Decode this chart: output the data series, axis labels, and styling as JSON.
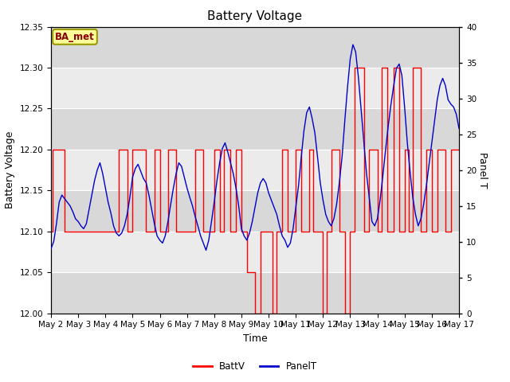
{
  "title": "Battery Voltage",
  "xlabel": "Time",
  "ylabel_left": "Battery Voltage",
  "ylabel_right": "Panel T",
  "annotation": "BA_met",
  "xlim_days": [
    1,
    16
  ],
  "ylim_left": [
    12.0,
    12.35
  ],
  "ylim_right": [
    0,
    40
  ],
  "yticks_left": [
    12.0,
    12.05,
    12.1,
    12.15,
    12.2,
    12.25,
    12.3,
    12.35
  ],
  "yticks_right": [
    0,
    5,
    10,
    15,
    20,
    25,
    30,
    35,
    40
  ],
  "xtick_labels": [
    "May 2",
    "May 3",
    "May 4",
    "May 5",
    "May 6",
    "May 7",
    "May 8",
    "May 9",
    "May 10",
    "May 11",
    "May 12",
    "May 13",
    "May 14",
    "May 15",
    "May 16",
    "May 17"
  ],
  "xtick_positions": [
    1,
    2,
    3,
    4,
    5,
    6,
    7,
    8,
    9,
    10,
    11,
    12,
    13,
    14,
    15,
    16
  ],
  "color_battv": "#FF0000",
  "color_panelt": "#0000CC",
  "bg_outer": "#FFFFFF",
  "bg_inner_light": "#EBEBEB",
  "bg_inner_dark": "#D8D8D8",
  "grid_color": "#FFFFFF",
  "legend_labels": [
    "BattV",
    "PanelT"
  ],
  "title_fontsize": 11,
  "axis_label_fontsize": 9,
  "tick_fontsize": 7.5,
  "battv_x": [
    1.0,
    1.05,
    1.05,
    1.5,
    1.5,
    2.0,
    2.0,
    2.5,
    2.5,
    3.0,
    3.0,
    3.5,
    3.5,
    3.8,
    3.8,
    4.0,
    4.0,
    4.5,
    4.5,
    4.8,
    4.8,
    5.0,
    5.0,
    5.3,
    5.3,
    5.6,
    5.6,
    5.8,
    5.8,
    6.0,
    6.0,
    6.3,
    6.3,
    6.6,
    6.6,
    6.8,
    6.8,
    7.0,
    7.0,
    7.2,
    7.2,
    7.35,
    7.35,
    7.6,
    7.6,
    7.8,
    7.8,
    8.0,
    8.0,
    8.2,
    8.2,
    8.5,
    8.5,
    8.7,
    8.7,
    9.0,
    9.0,
    9.15,
    9.15,
    9.3,
    9.3,
    9.5,
    9.5,
    9.7,
    9.7,
    10.0,
    10.0,
    10.2,
    10.2,
    10.5,
    10.5,
    10.65,
    10.65,
    11.0,
    11.0,
    11.15,
    11.15,
    11.3,
    11.3,
    11.6,
    11.6,
    11.8,
    11.8,
    12.0,
    12.0,
    12.15,
    12.15,
    12.5,
    12.5,
    12.7,
    12.7,
    13.0,
    13.0,
    13.15,
    13.15,
    13.35,
    13.35,
    13.6,
    13.6,
    13.8,
    13.8,
    14.0,
    14.0,
    14.15,
    14.15,
    14.3,
    14.3,
    14.6,
    14.6,
    14.8,
    14.8,
    15.0,
    15.0,
    15.2,
    15.2,
    15.5,
    15.5,
    15.7,
    15.7,
    16.0
  ],
  "battv_y": [
    12.1,
    12.1,
    12.2,
    12.2,
    12.1,
    12.1,
    12.1,
    12.1,
    12.1,
    12.1,
    12.1,
    12.1,
    12.2,
    12.2,
    12.1,
    12.1,
    12.2,
    12.2,
    12.1,
    12.1,
    12.2,
    12.2,
    12.1,
    12.1,
    12.2,
    12.2,
    12.1,
    12.1,
    12.1,
    12.1,
    12.1,
    12.1,
    12.2,
    12.2,
    12.1,
    12.1,
    12.1,
    12.1,
    12.2,
    12.2,
    12.1,
    12.1,
    12.2,
    12.2,
    12.1,
    12.1,
    12.2,
    12.2,
    12.1,
    12.1,
    12.05,
    12.05,
    12.0,
    12.0,
    12.1,
    12.1,
    12.1,
    12.1,
    12.0,
    12.0,
    12.1,
    12.1,
    12.2,
    12.2,
    12.1,
    12.1,
    12.2,
    12.2,
    12.1,
    12.1,
    12.2,
    12.2,
    12.1,
    12.1,
    12.0,
    12.0,
    12.1,
    12.1,
    12.2,
    12.2,
    12.1,
    12.1,
    12.0,
    12.0,
    12.1,
    12.1,
    12.3,
    12.3,
    12.1,
    12.1,
    12.2,
    12.2,
    12.1,
    12.1,
    12.3,
    12.3,
    12.1,
    12.1,
    12.3,
    12.3,
    12.1,
    12.1,
    12.2,
    12.2,
    12.1,
    12.1,
    12.3,
    12.3,
    12.1,
    12.1,
    12.2,
    12.2,
    12.1,
    12.1,
    12.2,
    12.2,
    12.1,
    12.1,
    12.2,
    12.2
  ],
  "panelt_x": [
    1.0,
    1.1,
    1.2,
    1.3,
    1.4,
    1.5,
    1.6,
    1.7,
    1.8,
    1.9,
    2.0,
    2.1,
    2.2,
    2.3,
    2.4,
    2.5,
    2.6,
    2.7,
    2.8,
    2.9,
    3.0,
    3.1,
    3.2,
    3.3,
    3.4,
    3.5,
    3.6,
    3.7,
    3.8,
    3.9,
    4.0,
    4.1,
    4.2,
    4.3,
    4.4,
    4.5,
    4.6,
    4.7,
    4.8,
    4.9,
    5.0,
    5.1,
    5.2,
    5.3,
    5.4,
    5.5,
    5.6,
    5.7,
    5.8,
    5.9,
    6.0,
    6.1,
    6.2,
    6.3,
    6.4,
    6.5,
    6.6,
    6.7,
    6.8,
    6.9,
    7.0,
    7.1,
    7.2,
    7.3,
    7.4,
    7.5,
    7.6,
    7.7,
    7.8,
    7.9,
    8.0,
    8.1,
    8.2,
    8.3,
    8.4,
    8.5,
    8.6,
    8.7,
    8.8,
    8.9,
    9.0,
    9.1,
    9.2,
    9.3,
    9.4,
    9.5,
    9.6,
    9.7,
    9.8,
    9.9,
    10.0,
    10.1,
    10.2,
    10.3,
    10.4,
    10.5,
    10.6,
    10.7,
    10.8,
    10.9,
    11.0,
    11.1,
    11.2,
    11.3,
    11.4,
    11.5,
    11.6,
    11.7,
    11.8,
    11.9,
    12.0,
    12.1,
    12.2,
    12.3,
    12.4,
    12.5,
    12.6,
    12.7,
    12.8,
    12.9,
    13.0,
    13.1,
    13.2,
    13.3,
    13.4,
    13.5,
    13.6,
    13.7,
    13.8,
    13.9,
    14.0,
    14.1,
    14.2,
    14.3,
    14.4,
    14.5,
    14.6,
    14.7,
    14.8,
    14.9,
    15.0,
    15.1,
    15.2,
    15.3,
    15.4,
    15.5,
    15.6,
    15.7,
    15.8,
    15.9,
    16.0
  ],
  "panelt_y": [
    9.0,
    10.0,
    12.5,
    15.5,
    16.5,
    16.0,
    15.5,
    15.0,
    14.2,
    13.2,
    12.8,
    12.2,
    11.8,
    12.5,
    14.5,
    16.5,
    18.5,
    20.0,
    21.0,
    19.5,
    17.5,
    15.5,
    14.0,
    12.2,
    11.2,
    10.8,
    11.2,
    12.2,
    13.8,
    16.2,
    19.0,
    20.2,
    20.8,
    19.8,
    18.8,
    18.2,
    16.5,
    14.5,
    12.5,
    10.8,
    10.2,
    9.8,
    10.8,
    12.8,
    15.2,
    17.5,
    19.5,
    21.0,
    20.5,
    19.0,
    17.5,
    16.2,
    15.0,
    13.5,
    12.2,
    10.8,
    9.8,
    8.8,
    10.2,
    12.8,
    15.5,
    18.5,
    21.0,
    23.0,
    23.8,
    22.5,
    21.0,
    19.5,
    17.5,
    15.0,
    11.8,
    10.8,
    10.2,
    11.2,
    12.8,
    14.8,
    16.8,
    18.2,
    18.8,
    18.2,
    16.8,
    15.8,
    14.8,
    13.8,
    12.2,
    10.8,
    10.2,
    9.2,
    9.8,
    11.8,
    14.8,
    17.8,
    21.8,
    25.5,
    28.0,
    28.8,
    27.2,
    25.2,
    21.8,
    18.2,
    15.8,
    13.8,
    12.8,
    12.2,
    13.2,
    15.2,
    18.2,
    21.8,
    26.8,
    31.5,
    35.5,
    37.5,
    36.5,
    33.0,
    28.5,
    24.0,
    19.5,
    16.2,
    12.8,
    12.2,
    13.2,
    15.8,
    19.2,
    22.8,
    26.2,
    29.2,
    31.8,
    34.2,
    34.8,
    33.2,
    28.8,
    23.8,
    19.8,
    16.2,
    13.8,
    12.2,
    13.2,
    15.2,
    17.8,
    20.8,
    23.8,
    26.8,
    29.8,
    31.8,
    32.8,
    31.8,
    29.8,
    29.2,
    28.8,
    27.8,
    25.8
  ]
}
